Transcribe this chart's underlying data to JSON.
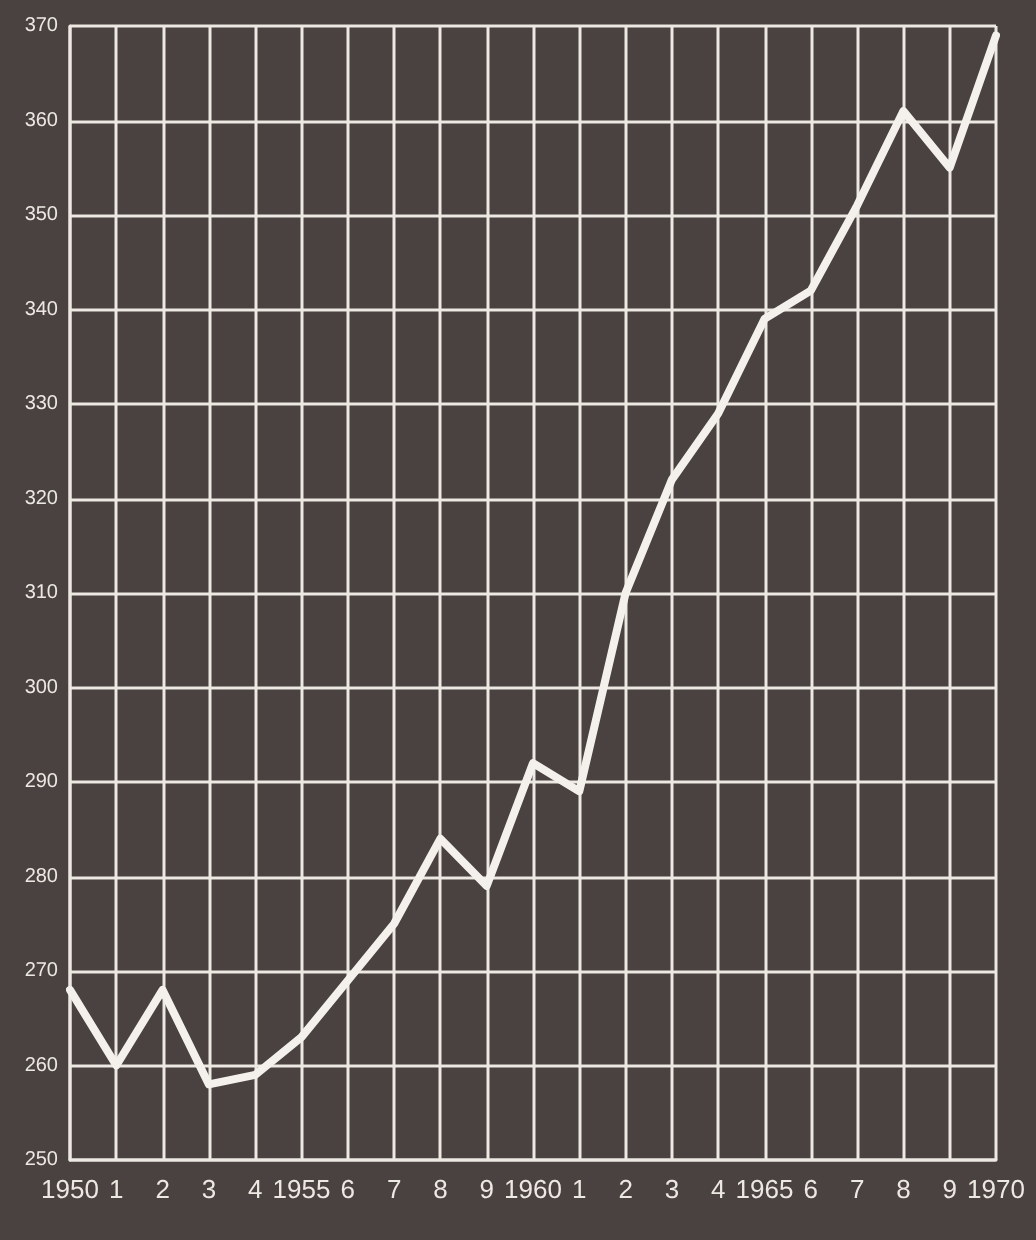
{
  "chart_data": {
    "type": "line",
    "categories": [
      "1950",
      "1",
      "2",
      "3",
      "4",
      "1955",
      "6",
      "7",
      "8",
      "9",
      "1960",
      "1",
      "2",
      "3",
      "4",
      "1965",
      "6",
      "7",
      "8",
      "9",
      "1970"
    ],
    "series": [
      {
        "color": "#f4f1ec",
        "values": [
          268,
          260,
          268,
          258,
          259,
          263,
          269,
          275,
          284,
          279,
          292,
          289,
          310,
          322,
          329,
          339,
          342,
          351,
          361,
          355,
          369
        ]
      }
    ],
    "ylim": [
      250,
      370
    ],
    "yticks": [
      250,
      260,
      270,
      280,
      290,
      300,
      310,
      320,
      330,
      340,
      350,
      360,
      370
    ],
    "grid": true,
    "marker": "none",
    "line_style": "solid"
  }
}
